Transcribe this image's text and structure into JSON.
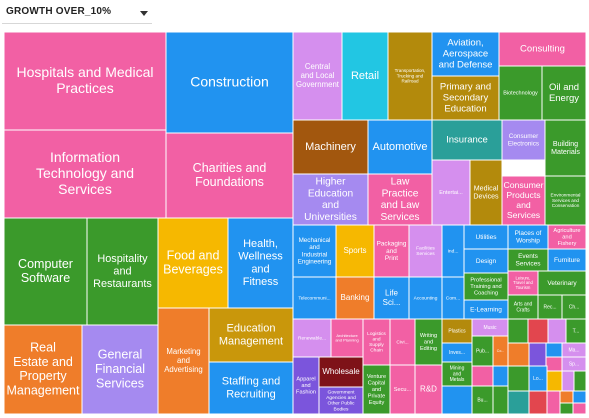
{
  "controls": {
    "metric_selector": {
      "value": "GROWTH OVER_10%",
      "icon": "chevron-down-icon"
    }
  },
  "chart_data": {
    "type": "treemap",
    "title": "",
    "metric": "GROWTH OVER_10%",
    "colors": {
      "pink": "#f260a4",
      "blue": "#2193f0",
      "green": "#3b9a2b",
      "orange": "#ef7d2a",
      "purple": "#7b55dc",
      "gold": "#c9970b",
      "amber": "#f6b800",
      "lavender": "#d58fee",
      "cyan": "#22c6e3",
      "olive": "#b38a0c",
      "brown": "#a2570e",
      "lightpurple": "#a58af0",
      "darkred": "#7e1218",
      "red": "#e2464e",
      "teal": "#2a9f99"
    },
    "items": [
      {
        "label": "Hospitals and Medical Practices",
        "color": "pink",
        "value": 33
      },
      {
        "label": "Information Technology and Services",
        "color": "pink",
        "value": 27
      },
      {
        "label": "Construction",
        "color": "blue",
        "value": 23
      },
      {
        "label": "Charities and Foundations",
        "color": "pink",
        "value": 21
      },
      {
        "label": "Computer Software",
        "color": "green",
        "value": 18
      },
      {
        "label": "Hospitality and Restaurants",
        "color": "green",
        "value": 15
      },
      {
        "label": "Real Estate and Property Management",
        "color": "orange",
        "value": 18
      },
      {
        "label": "General Financial Services",
        "color": "lightpurple",
        "value": 15
      },
      {
        "label": "Food and Beverages",
        "color": "amber",
        "value": 12
      },
      {
        "label": "Health, Wellness and Fitness",
        "color": "blue",
        "value": 16
      },
      {
        "label": "Marketing and Advertising",
        "color": "orange",
        "value": 10
      },
      {
        "label": "Education Management",
        "color": "gold",
        "value": 11
      },
      {
        "label": "Staffing and Recruiting",
        "color": "blue",
        "value": 11
      },
      {
        "label": "Central and Local Government",
        "color": "lavender",
        "value": 6
      },
      {
        "label": "Retail",
        "color": "cyan",
        "value": 6
      },
      {
        "label": "Transportation, Trucking and Railroad",
        "color": "olive",
        "value": 6
      },
      {
        "label": "Aviation, Aerospace and Defense",
        "color": "blue",
        "value": 5
      },
      {
        "label": "Consulting",
        "color": "pink",
        "value": 4
      },
      {
        "label": "Primary and Secondary Education",
        "color": "olive",
        "value": 5
      },
      {
        "label": "Biotechnology",
        "color": "green",
        "value": 3
      },
      {
        "label": "Oil and Energy",
        "color": "green",
        "value": 3
      },
      {
        "label": "Machinery",
        "color": "brown",
        "value": 4
      },
      {
        "label": "Automotive",
        "color": "blue",
        "value": 4
      },
      {
        "label": "Insurance",
        "color": "teal",
        "value": 3
      },
      {
        "label": "Consumer Electronics",
        "color": "lightpurple",
        "value": 2
      },
      {
        "label": "Building Materials",
        "color": "green",
        "value": 2
      },
      {
        "label": "Higher Education and Universities",
        "color": "lightpurple",
        "value": 5
      },
      {
        "label": "Law Practice and Law Services",
        "color": "pink",
        "value": 4
      },
      {
        "label": "Entertai...",
        "color": "lavender",
        "value": 2
      },
      {
        "label": "Medical Devices",
        "color": "olive",
        "value": 2
      },
      {
        "label": "Consumer Products and Services",
        "color": "pink",
        "value": 2
      },
      {
        "label": "Environmental Services and Conservation",
        "color": "green",
        "value": 2
      },
      {
        "label": "Mechanical and Industrial Engineering",
        "color": "blue",
        "value": 2
      },
      {
        "label": "Sports",
        "color": "amber",
        "value": 2
      },
      {
        "label": "Packaging and Print",
        "color": "pink",
        "value": 1
      },
      {
        "label": "Facilities Services",
        "color": "lavender",
        "value": 1
      },
      {
        "label": "Ind...",
        "color": "blue",
        "value": 1
      },
      {
        "label": "Utilities",
        "color": "blue",
        "value": 1
      },
      {
        "label": "Places of Worship",
        "color": "blue",
        "value": 1
      },
      {
        "label": "Agriculture and Fishery",
        "color": "pink",
        "value": 1
      },
      {
        "label": "Design",
        "color": "blue",
        "value": 1
      },
      {
        "label": "Events Services",
        "color": "green",
        "value": 1
      },
      {
        "label": "Furniture",
        "color": "blue",
        "value": 1
      },
      {
        "label": "Telecommuni...",
        "color": "blue",
        "value": 1
      },
      {
        "label": "Banking",
        "color": "orange",
        "value": 1
      },
      {
        "label": "Life Sci...",
        "color": "blue",
        "value": 1
      },
      {
        "label": "Accounting",
        "color": "blue",
        "value": 1
      },
      {
        "label": "Com...",
        "color": "blue",
        "value": 1
      },
      {
        "label": "Professional Training and Coaching",
        "color": "green",
        "value": 1
      },
      {
        "label": "Leisure, Travel and Tourism",
        "color": "pink",
        "value": 1
      },
      {
        "label": "Veterinary",
        "color": "green",
        "value": 1
      },
      {
        "label": "E-Learning",
        "color": "blue",
        "value": 1
      },
      {
        "label": "Arts and Crafts",
        "color": "green",
        "value": 1
      },
      {
        "label": "Rec...",
        "color": "green",
        "value": 1
      },
      {
        "label": "Ch...",
        "color": "green",
        "value": 1
      },
      {
        "label": "Renewable...",
        "color": "lavender",
        "value": 1
      },
      {
        "label": "Architecture and Planning",
        "color": "pink",
        "value": 1
      },
      {
        "label": "Logistics and Supply Chain",
        "color": "pink",
        "value": 1
      },
      {
        "label": "Civi...",
        "color": "pink",
        "value": 1
      },
      {
        "label": "Writing and Editing",
        "color": "green",
        "value": 1
      },
      {
        "label": "Plastics",
        "color": "olive",
        "value": 1
      },
      {
        "label": "Music",
        "color": "lavender",
        "value": 1
      },
      {
        "label": "Wholesale",
        "color": "darkred",
        "value": 1
      },
      {
        "label": "Apparel and Fashion",
        "color": "purple",
        "value": 1
      },
      {
        "label": "Government Agencies and Other Public Bodies",
        "color": "purple",
        "value": 1
      },
      {
        "label": "Venture Capital and Private Equity",
        "color": "green",
        "value": 1
      },
      {
        "label": "Secu...",
        "color": "pink",
        "value": 1
      },
      {
        "label": "R&D",
        "color": "pink",
        "value": 1
      },
      {
        "label": "Mining and Metals",
        "color": "green",
        "value": 1
      },
      {
        "label": "Inves...",
        "color": "blue",
        "value": 1
      },
      {
        "label": "Pub...",
        "color": "green",
        "value": 1
      },
      {
        "label": "Co...",
        "color": "orange",
        "value": 1
      },
      {
        "label": "Bu...",
        "color": "green",
        "value": 1
      },
      {
        "label": "Lo...",
        "color": "blue",
        "value": 1
      },
      {
        "label": "Ma...",
        "color": "lavender",
        "value": 1
      },
      {
        "label": "Sp...",
        "color": "lavender",
        "value": 1
      },
      {
        "label": "T...",
        "color": "green",
        "value": 1
      }
    ],
    "filler_colors": [
      "green",
      "red",
      "lavender",
      "pink",
      "blue",
      "green",
      "orange",
      "purple",
      "blue",
      "pink",
      "green",
      "teal",
      "red",
      "amber",
      "lavender",
      "green",
      "pink",
      "orange",
      "blue",
      "green",
      "pink",
      "blue",
      "lavender",
      "green",
      "red",
      "orange",
      "blue",
      "pink",
      "green",
      "lavender",
      "teal",
      "pink"
    ]
  }
}
